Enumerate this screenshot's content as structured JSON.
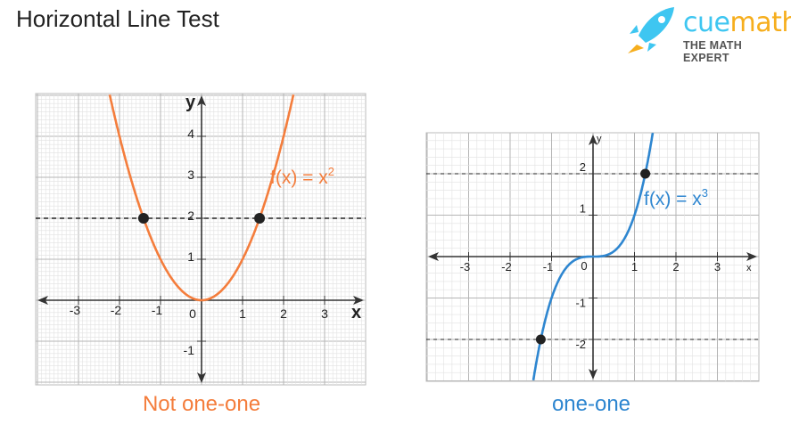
{
  "title": "Horizontal Line Test",
  "logo": {
    "brand_part1": "cue",
    "brand_part2": "math",
    "tagline": "THE MATH EXPERT",
    "brand_blue": "#3ec6f1",
    "brand_orange": "#f6ae1d"
  },
  "chart_data": [
    {
      "type": "line",
      "function": "x^2",
      "label": "f(x) = x",
      "label_sup": "2",
      "caption": "Not one-one",
      "color": "#f47d3c",
      "xlim": [
        -4,
        4
      ],
      "ylim": [
        -2,
        5
      ],
      "xticks": [
        -3,
        -2,
        -1,
        1,
        2,
        3
      ],
      "yticks": [
        -1,
        1,
        2,
        3,
        4
      ],
      "xlabel": "x",
      "ylabel": "y",
      "origin_label": "0",
      "grid": true,
      "horizontal_lines": [
        2
      ],
      "intersections": [
        [
          -1.414,
          2
        ],
        [
          1.414,
          2
        ]
      ]
    },
    {
      "type": "line",
      "function": "x^3",
      "label": "f(x) = x",
      "label_sup": "3",
      "caption": "one-one",
      "color": "#2e86d0",
      "xlim": [
        -4,
        4
      ],
      "ylim": [
        -3,
        3
      ],
      "xticks": [
        -3,
        -2,
        -1,
        1,
        2,
        3
      ],
      "yticks": [
        -2,
        -1,
        1,
        2
      ],
      "xlabel": "x",
      "ylabel": "y",
      "origin_label": "0",
      "grid": true,
      "horizontal_lines": [
        2,
        -2
      ],
      "intersections": [
        [
          1.26,
          2
        ],
        [
          -1.26,
          -2
        ]
      ]
    }
  ]
}
